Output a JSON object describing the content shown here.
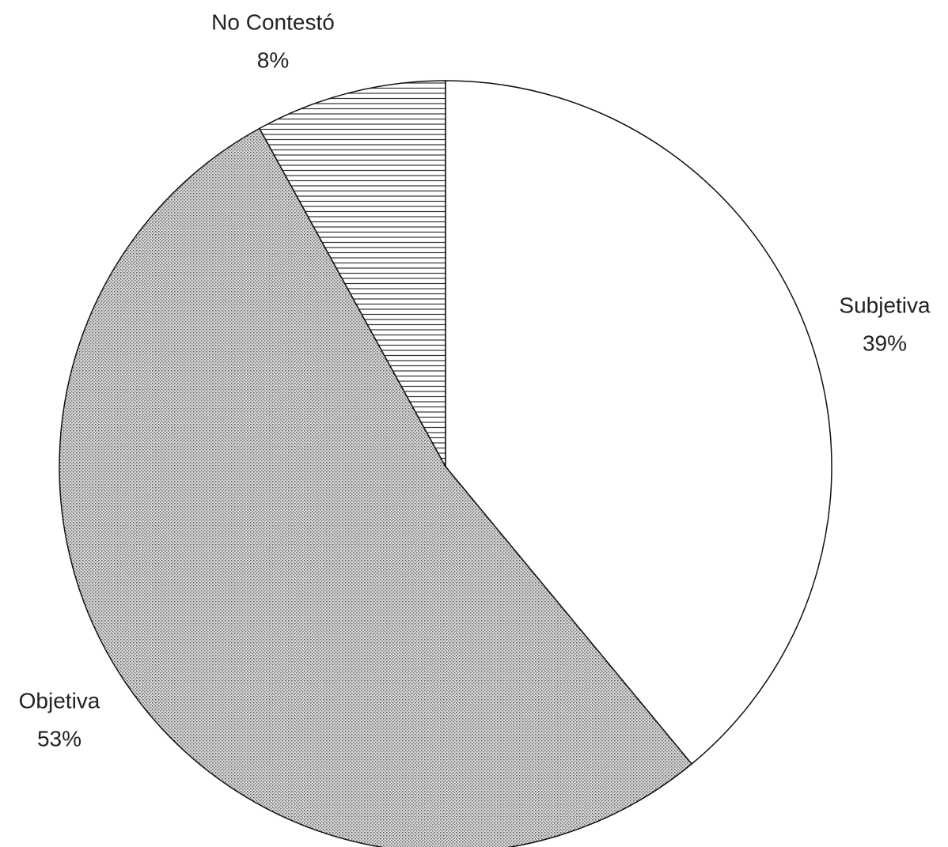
{
  "chart_data": {
    "type": "pie",
    "categories": [
      "Subjetiva",
      "Objetiva",
      "No Contestó"
    ],
    "values": [
      39,
      53,
      8
    ],
    "value_labels": [
      "39%",
      "53%",
      "8%"
    ],
    "patterns": [
      "none",
      "dots",
      "horizontal-lines"
    ],
    "start_angle": 0,
    "direction": "clockwise"
  }
}
